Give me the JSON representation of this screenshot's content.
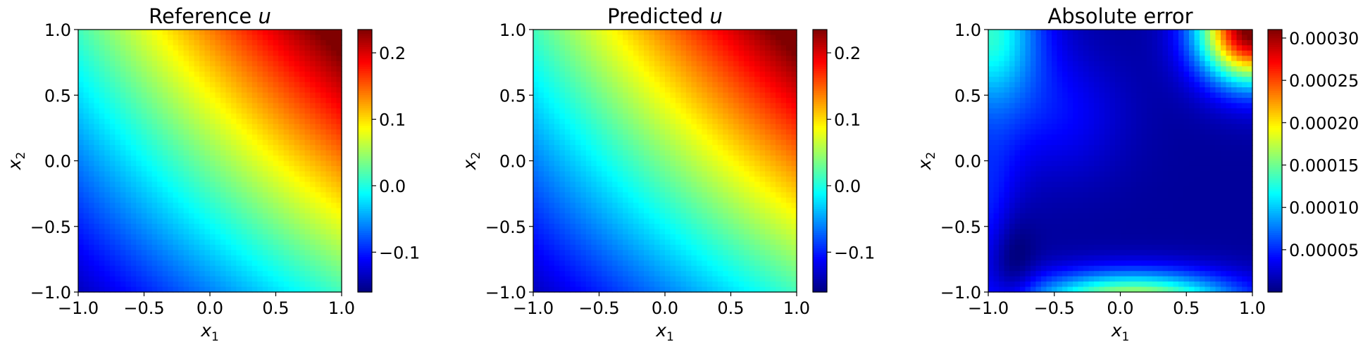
{
  "chart_data": [
    {
      "type": "heatmap",
      "title": "Reference u",
      "title_parts": {
        "text": "Reference ",
        "var": "u"
      },
      "xlabel": {
        "base": "x",
        "sub": "1"
      },
      "ylabel": {
        "base": "x",
        "sub": "2"
      },
      "xlim": [
        -1.0,
        1.0
      ],
      "ylim": [
        -1.0,
        1.0
      ],
      "xticks": [
        -1.0,
        -0.5,
        0.0,
        0.5,
        1.0
      ],
      "xtick_labels": [
        "−1.0",
        "−0.5",
        "0.0",
        "0.5",
        "1.0"
      ],
      "yticks": [
        -1.0,
        -0.5,
        0.0,
        0.5,
        1.0
      ],
      "ytick_labels": [
        "−1.0",
        "−0.5",
        "0.0",
        "0.5",
        "1.0"
      ],
      "colormap": "jet",
      "colorbar": {
        "min": -0.16,
        "max": 0.235,
        "ticks": [
          -0.1,
          0.0,
          0.1,
          0.2
        ],
        "tick_labels": [
          "−0.1",
          "0.0",
          "0.1",
          "0.2"
        ]
      },
      "field": {
        "kind": "linear-plus-quadratic",
        "description_values": {
          "at_-1_-1": -0.16,
          "at_1_1": 0.235,
          "at_-1_1": 0.06,
          "at_1_-1": 0.06
        }
      }
    },
    {
      "type": "heatmap",
      "title": "Predicted u",
      "title_parts": {
        "text": "Predicted ",
        "var": "u"
      },
      "xlabel": {
        "base": "x",
        "sub": "1"
      },
      "ylabel": {
        "base": "x",
        "sub": "2"
      },
      "xlim": [
        -1.0,
        1.0
      ],
      "ylim": [
        -1.0,
        1.0
      ],
      "xticks": [
        -1.0,
        -0.5,
        0.0,
        0.5,
        1.0
      ],
      "xtick_labels": [
        "−1.0",
        "−0.5",
        "0.0",
        "0.5",
        "1.0"
      ],
      "yticks": [
        -1.0,
        -0.5,
        0.0,
        0.5,
        1.0
      ],
      "ytick_labels": [
        "−1.0",
        "−0.5",
        "0.0",
        "0.5",
        "1.0"
      ],
      "colormap": "jet",
      "colorbar": {
        "min": -0.16,
        "max": 0.235,
        "ticks": [
          -0.1,
          0.0,
          0.1,
          0.2
        ],
        "tick_labels": [
          "−0.1",
          "0.0",
          "0.1",
          "0.2"
        ]
      },
      "field": {
        "kind": "linear-plus-quadratic",
        "description_values": {
          "at_-1_-1": -0.16,
          "at_1_1": 0.235,
          "at_-1_1": 0.06,
          "at_1_-1": 0.06
        }
      }
    },
    {
      "type": "heatmap",
      "title": "Absolute error",
      "title_parts": {
        "text": "Absolute error",
        "var": ""
      },
      "xlabel": {
        "base": "x",
        "sub": "1"
      },
      "ylabel": {
        "base": "x",
        "sub": "2"
      },
      "xlim": [
        -1.0,
        1.0
      ],
      "ylim": [
        -1.0,
        1.0
      ],
      "xticks": [
        -1.0,
        -0.5,
        0.0,
        0.5,
        1.0
      ],
      "xtick_labels": [
        "−1.0",
        "−0.5",
        "0.0",
        "0.5",
        "1.0"
      ],
      "yticks": [
        -1.0,
        -0.5,
        0.0,
        0.5,
        1.0
      ],
      "ytick_labels": [
        "−1.0",
        "−0.5",
        "0.0",
        "0.5",
        "1.0"
      ],
      "colormap": "jet",
      "colorbar": {
        "min": 0.0,
        "max": 0.00031,
        "ticks": [
          5e-05,
          0.0001,
          0.00015,
          0.0002,
          0.00025,
          0.0003
        ],
        "tick_labels": [
          "0.00005",
          "0.00010",
          "0.00015",
          "0.00020",
          "0.00025",
          "0.00030"
        ]
      },
      "field": {
        "kind": "error-bumps",
        "description_values": {
          "peak_top_right": 0.00031,
          "bottom_center": 0.00018,
          "top_left": 0.00013,
          "center_min": 5e-06
        }
      }
    }
  ]
}
